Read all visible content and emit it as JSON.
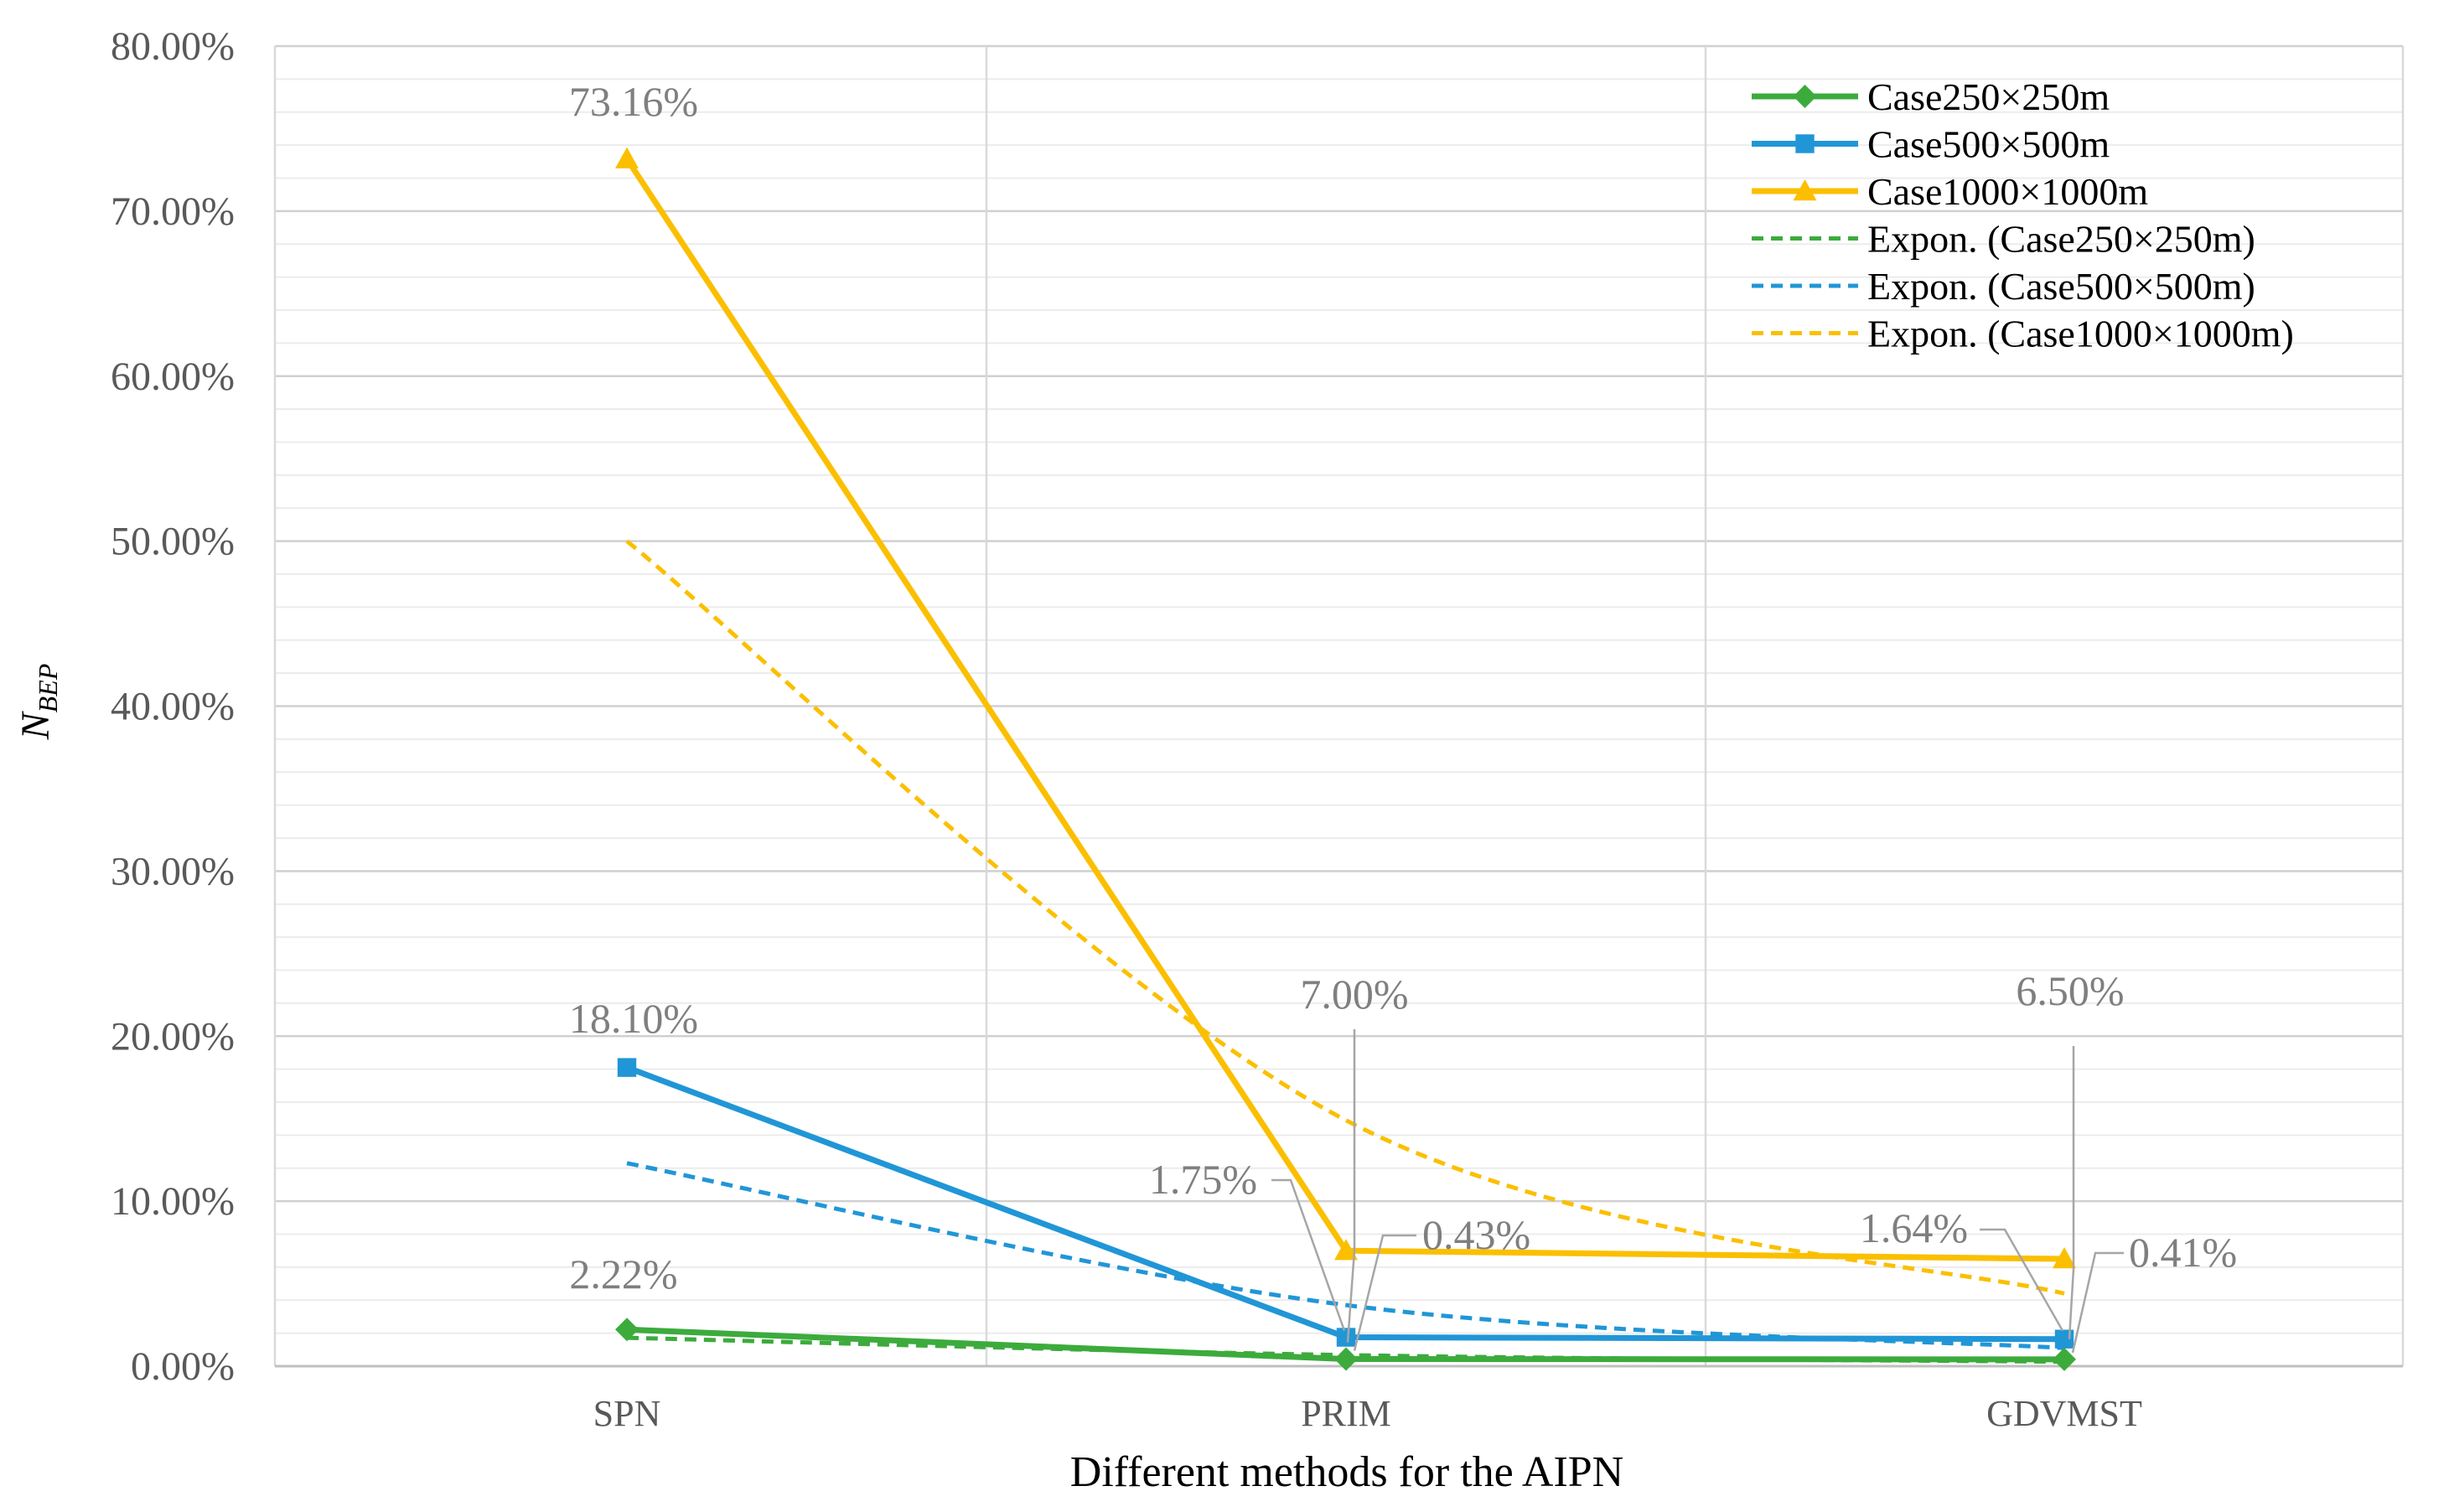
{
  "chart_data": {
    "type": "line",
    "categories": [
      "SPN",
      "PRIM",
      "GDVMST"
    ],
    "xlabel": "Different methods for the AIPN",
    "ylabel": "N",
    "ylabel_subscript": "BEP",
    "ylim": [
      0,
      0.8
    ],
    "y_tick_labels": [
      "0.00%",
      "10.00%",
      "20.00%",
      "30.00%",
      "40.00%",
      "50.00%",
      "60.00%",
      "70.00%",
      "80.00%"
    ],
    "grid": true,
    "legend_position": "top-right",
    "series": [
      {
        "name": "Case250×250m",
        "values": [
          0.0222,
          0.0043,
          0.0041
        ],
        "color": "#3cab3c",
        "marker": "diamond",
        "style": "solid"
      },
      {
        "name": "Case500×500m",
        "values": [
          0.181,
          0.0175,
          0.0164
        ],
        "color": "#2196d6",
        "marker": "square",
        "style": "solid"
      },
      {
        "name": "Case1000×1000m",
        "values": [
          0.7316,
          0.07,
          0.065
        ],
        "color": "#fbbf00",
        "marker": "triangle",
        "style": "solid"
      },
      {
        "name": "Expon. (Case250×250m)",
        "values": [
          0.0172,
          0.0067,
          0.0027
        ],
        "color": "#3cab3c",
        "style": "dashed"
      },
      {
        "name": "Expon. (Case500×500m)",
        "values": [
          0.123,
          0.037,
          0.011
        ],
        "color": "#2196d6",
        "style": "dashed"
      },
      {
        "name": "Expon. (Case1000×1000m)",
        "values": [
          0.5,
          0.149,
          0.044
        ],
        "color": "#fbbf00",
        "style": "dashed"
      }
    ],
    "data_labels": {
      "spn_1000": "73.16%",
      "spn_500": "18.10%",
      "spn_250": "2.22%",
      "prim_1000": "7.00%",
      "prim_500": "1.75%",
      "prim_250": "0.43%",
      "gdv_1000": "6.50%",
      "gdv_500": "1.64%",
      "gdv_250": "0.41%"
    }
  }
}
